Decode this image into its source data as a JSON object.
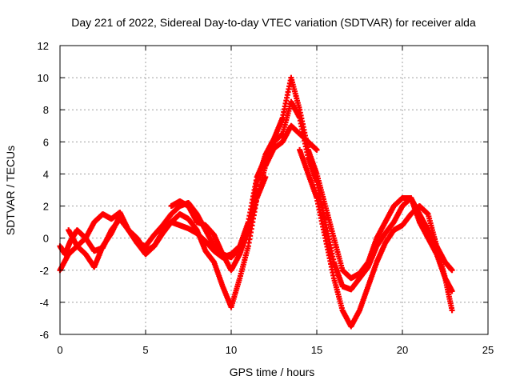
{
  "chart_data": {
    "type": "scatter",
    "title": "Day 221 of 2022, Sidereal Day-to-day VTEC variation (SDTVAR) for receiver alda",
    "xlabel": "GPS time / hours",
    "ylabel": "SDTVAR / TECUs",
    "xlim": [
      0,
      25
    ],
    "ylim": [
      -6,
      12
    ],
    "xticks": [
      "0",
      "5",
      "10",
      "15",
      "20",
      "25"
    ],
    "yticks": [
      "-6",
      "-4",
      "-2",
      "0",
      "2",
      "4",
      "6",
      "8",
      "10",
      "12"
    ],
    "grid": true,
    "marker": "plus",
    "color": "#ff0000",
    "series": [
      {
        "name": "track-1",
        "x": [
          0.0,
          0.3,
          0.6,
          1.0,
          1.5,
          2.0,
          2.5,
          3.0,
          3.5,
          4.0,
          4.5,
          5.0,
          5.5,
          6.0,
          6.5,
          7.0,
          7.5,
          8.0,
          8.5,
          9.0,
          9.5,
          10.0,
          10.5,
          11.0,
          11.5,
          12.0,
          12.5,
          13.0,
          13.5,
          14.0,
          14.5,
          15.0,
          15.5,
          16.0,
          16.5,
          17.0,
          17.5,
          18.0,
          18.5,
          19.0,
          19.5,
          20.0,
          20.5,
          21.0,
          21.5,
          22.0,
          22.5,
          22.9
        ],
        "y": [
          -0.5,
          -1.0,
          -0.2,
          0.5,
          0.0,
          1.0,
          1.5,
          1.2,
          1.6,
          0.5,
          -0.3,
          -0.5,
          0.2,
          0.8,
          1.5,
          2.0,
          2.2,
          1.5,
          0.5,
          -0.5,
          -1.0,
          -1.2,
          -0.6,
          0.5,
          3.5,
          5.2,
          6.2,
          7.5,
          10.0,
          8.0,
          5.5,
          4.0,
          2.0,
          0.0,
          -2.0,
          -2.5,
          -2.2,
          -1.5,
          0.0,
          1.0,
          2.0,
          2.5,
          2.5,
          1.5,
          0.5,
          -0.5,
          -1.5,
          -2.0
        ]
      },
      {
        "name": "track-2",
        "x": [
          0.5,
          1.0,
          1.5,
          2.0,
          2.5,
          3.0,
          3.5,
          4.0,
          4.5,
          5.0,
          5.5,
          6.0,
          6.5,
          7.0,
          7.5,
          8.0,
          8.5,
          9.0,
          9.5,
          10.0,
          10.5,
          11.0,
          11.5,
          12.0,
          12.5,
          13.0,
          13.5,
          14.0,
          14.5,
          15.0,
          15.5,
          16.0,
          16.5,
          17.0,
          17.5,
          18.0,
          18.5,
          19.0,
          19.5,
          20.0,
          20.5,
          21.0,
          21.5,
          22.0,
          22.5,
          22.9
        ],
        "y": [
          0.5,
          -0.5,
          -1.0,
          -1.8,
          -0.5,
          0.3,
          1.4,
          0.5,
          0.0,
          -0.8,
          -0.5,
          0.4,
          1.0,
          0.8,
          0.6,
          0.3,
          -0.2,
          -0.8,
          -1.2,
          -1.0,
          -0.5,
          1.0,
          3.8,
          5.0,
          6.0,
          6.5,
          8.5,
          7.5,
          5.0,
          3.5,
          1.0,
          -1.5,
          -3.0,
          -3.2,
          -2.5,
          -1.8,
          -0.5,
          0.3,
          1.0,
          2.0,
          2.5,
          1.0,
          0.0,
          -1.0,
          -2.5,
          -3.3
        ]
      },
      {
        "name": "track-3",
        "x": [
          0.0,
          0.5,
          1.0,
          1.5,
          2.0,
          2.5,
          3.0,
          3.5,
          4.0,
          4.5,
          5.0,
          5.5,
          6.0,
          6.5,
          7.0,
          7.5,
          8.0,
          8.5,
          9.0,
          9.5,
          10.0,
          10.5,
          11.0,
          11.5,
          12.0,
          12.5,
          13.0,
          13.5,
          14.0,
          14.5,
          15.0
        ],
        "y": [
          -2.0,
          -1.0,
          -0.5,
          0.0,
          -0.8,
          -0.6,
          0.5,
          1.2,
          0.5,
          -0.3,
          -1.0,
          -0.5,
          0.3,
          1.0,
          1.5,
          1.2,
          0.5,
          -0.8,
          -1.5,
          -3.0,
          -4.3,
          -2.5,
          -0.5,
          2.5,
          4.5,
          5.6,
          6.0,
          7.0,
          6.5,
          6.0,
          5.5
        ]
      },
      {
        "name": "track-4",
        "x": [
          14.0,
          14.5,
          15.0,
          15.5,
          16.0,
          16.5,
          17.0,
          17.5,
          18.0,
          18.5,
          19.0,
          19.5,
          20.0,
          20.5,
          21.0,
          21.5,
          22.0,
          22.5,
          22.9
        ],
        "y": [
          5.5,
          4.0,
          2.5,
          0.0,
          -2.5,
          -4.5,
          -5.5,
          -4.5,
          -3.0,
          -1.5,
          -0.3,
          0.5,
          0.8,
          1.5,
          2.0,
          1.5,
          -0.5,
          -2.5,
          -4.5
        ]
      },
      {
        "name": "track-5",
        "x": [
          6.5,
          7.0,
          7.5,
          8.0,
          8.5,
          9.0,
          9.5,
          10.0,
          10.5,
          11.0,
          11.5,
          12.0
        ],
        "y": [
          2.0,
          2.3,
          2.0,
          1.0,
          0.8,
          0.2,
          -1.0,
          -2.0,
          -1.0,
          0.5,
          2.5,
          3.8
        ]
      }
    ]
  }
}
